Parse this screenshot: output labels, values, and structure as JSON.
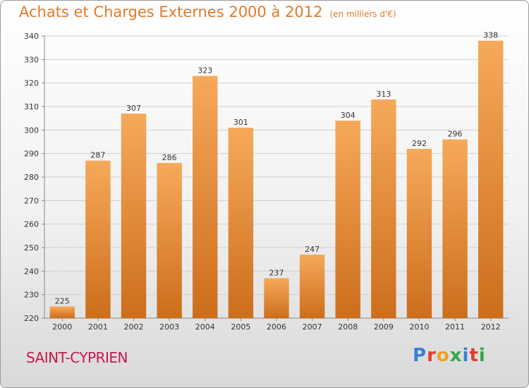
{
  "header": {
    "title": "Achats et Charges Externes 2000 à 2012",
    "unit": "(en milliers d'€)"
  },
  "commune": "SAINT-CYPRIEN",
  "brand": {
    "letters": [
      "P",
      "r",
      "o",
      "x",
      "i",
      "t",
      "i"
    ],
    "colors": [
      "#3a7fd5",
      "#e23b2e",
      "#f0a020",
      "#2ea84a",
      "#3a7fd5",
      "#e23b2e",
      "#2ea84a"
    ]
  },
  "colors": {
    "bar_top": "#f6a95a",
    "bar_bottom": "#cc6e1c",
    "title": "#e07a2a",
    "commune": "#c8184e"
  },
  "chart_data": {
    "type": "bar",
    "title": "Achats et Charges Externes 2000 à 2012",
    "subtitle": "(en milliers d'€)",
    "categories": [
      "2000",
      "2001",
      "2002",
      "2003",
      "2004",
      "2005",
      "2006",
      "2007",
      "2008",
      "2009",
      "2010",
      "2011",
      "2012"
    ],
    "values": [
      225,
      287,
      307,
      286,
      323,
      301,
      237,
      247,
      304,
      313,
      292,
      296,
      338
    ],
    "ylim": [
      220,
      340
    ],
    "yticks": [
      220,
      230,
      240,
      250,
      260,
      270,
      280,
      290,
      300,
      310,
      320,
      330,
      340
    ],
    "grid": true
  }
}
